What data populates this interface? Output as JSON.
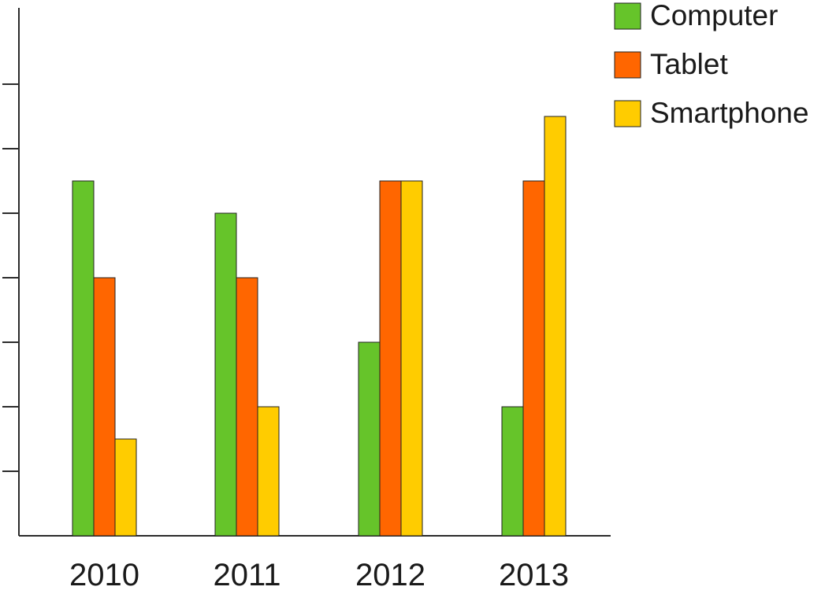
{
  "chart_data": {
    "type": "bar",
    "categories": [
      "2010",
      "2011",
      "2012",
      "2013"
    ],
    "series": [
      {
        "name": "Computer",
        "color": "#66c42a",
        "values": [
          5.5,
          5,
          3,
          2
        ]
      },
      {
        "name": "Tablet",
        "color": "#ff6600",
        "values": [
          4,
          4,
          5.5,
          5.5
        ]
      },
      {
        "name": "Smartphone",
        "color": "#ffcc00",
        "values": [
          1.5,
          2,
          5.5,
          6.5
        ]
      }
    ],
    "ylim": [
      0,
      7
    ],
    "ytick_count": 7,
    "ytick_labels_shown": false,
    "grid": false,
    "legend_position": "top-right",
    "bar_outline_color": "#222222",
    "axis_color": "#2b2b2b"
  }
}
